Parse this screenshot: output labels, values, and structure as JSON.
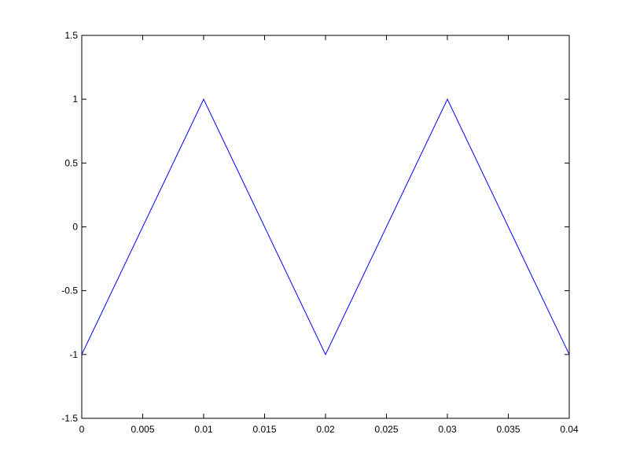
{
  "chart_data": {
    "type": "line",
    "title": "",
    "xlabel": "",
    "ylabel": "",
    "xlim": [
      0,
      0.04
    ],
    "ylim": [
      -1.5,
      1.5
    ],
    "xticks": [
      0,
      0.005,
      0.01,
      0.015,
      0.02,
      0.025,
      0.03,
      0.035,
      0.04
    ],
    "xtick_labels": [
      "0",
      "0.005",
      "0.01",
      "0.015",
      "0.02",
      "0.025",
      "0.03",
      "0.035",
      "0.04"
    ],
    "yticks": [
      -1.5,
      -1,
      -0.5,
      0,
      0.5,
      1,
      1.5
    ],
    "ytick_labels": [
      "-1.5",
      "-1",
      "-0.5",
      "0",
      "0.5",
      "1",
      "1.5"
    ],
    "grid": false,
    "series": [
      {
        "color": "#0000ff",
        "x": [
          0,
          0.01,
          0.02,
          0.03,
          0.04
        ],
        "y": [
          -1,
          1,
          -1,
          1,
          -1
        ]
      }
    ]
  }
}
